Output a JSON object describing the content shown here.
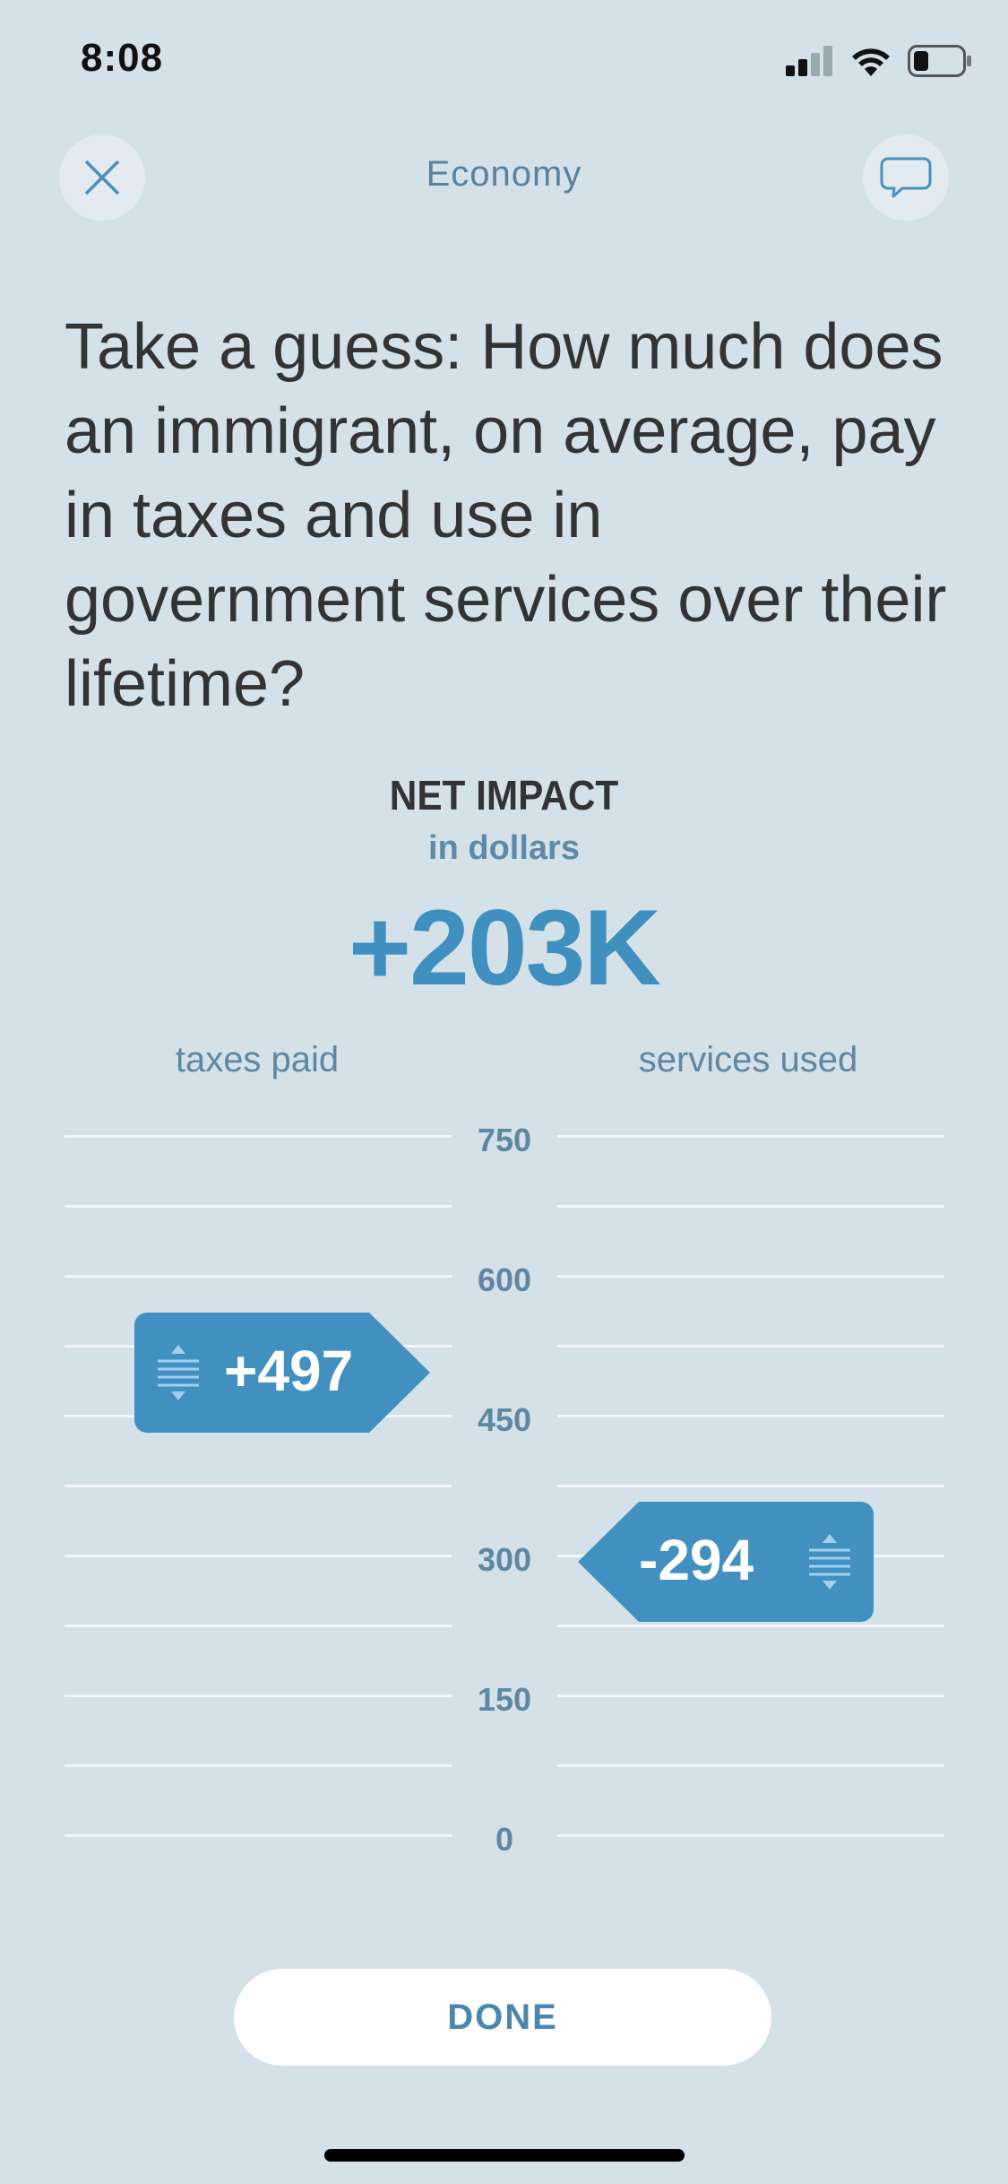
{
  "status_bar": {
    "time": "8:08"
  },
  "header": {
    "title": "Economy"
  },
  "question": "Take a guess: How much does an immigrant, on average, pay in taxes and use in government services over their lifetime?",
  "impact": {
    "title": "NET IMPACT",
    "subtitle": "in dollars",
    "value": "+203K"
  },
  "columns": {
    "left": "taxes paid",
    "right": "services used"
  },
  "scale": {
    "ticks": [
      "750",
      "600",
      "450",
      "300",
      "150",
      "0"
    ],
    "min": 0,
    "max": 750
  },
  "sliders": {
    "taxes": {
      "label": "+497",
      "value": 497
    },
    "services": {
      "label": "-294",
      "value": 294
    }
  },
  "actions": {
    "done": "DONE"
  },
  "colors": {
    "background": "#d4e1e9",
    "accent": "#4290c0",
    "text": "#333333"
  }
}
